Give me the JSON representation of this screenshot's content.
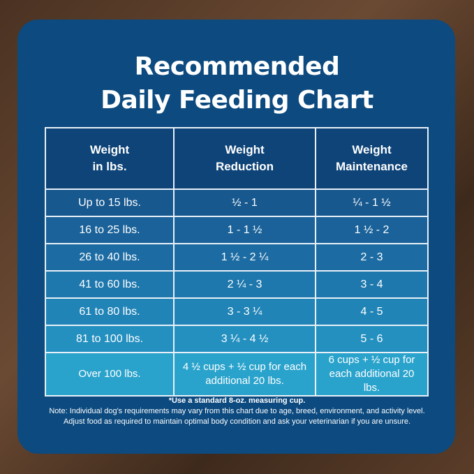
{
  "title_lines": [
    "Recommended",
    "Daily Feeding Chart"
  ],
  "table": {
    "headers": [
      [
        "Weight",
        "in lbs."
      ],
      [
        "Weight",
        "Reduction"
      ],
      [
        "Weight",
        "Maintenance"
      ]
    ],
    "rows": [
      [
        "Up to 15 lbs.",
        "½ - 1",
        "¼ - 1 ½"
      ],
      [
        "16 to 25 lbs.",
        "1 - 1 ½",
        "1 ½ - 2"
      ],
      [
        "26 to 40 lbs.",
        "1 ½ - 2 ¼",
        "2 - 3"
      ],
      [
        "41 to 60 lbs.",
        "2 ¼ - 3",
        "3 - 4"
      ],
      [
        "61 to 80 lbs.",
        "3 - 3 ¼",
        "4 - 5"
      ],
      [
        "81 to 100 lbs.",
        "3 ¼ - 4 ½",
        "5 - 6"
      ],
      [
        "Over 100 lbs.",
        "4 ½ cups  + ½ cup for each additional 20 lbs.",
        "6 cups  + ½ cup for each additional 20 lbs."
      ]
    ],
    "row_colors": [
      "#17588f",
      "#1a6299",
      "#1c6ca3",
      "#1f78ad",
      "#2184b7",
      "#2490c0",
      "#2aa3cc"
    ]
  },
  "footnote": "*Use a standard 8-oz. measuring cup.",
  "note_lines": [
    "Note: Individual dog's requirements may vary from this chart due to age, breed, environment, and activity level.",
    "Adjust food as required to maintain optimal body condition and ask your veterinarian if you are unsure."
  ],
  "colors": {
    "card": "#0c4a7f",
    "border": "#e8f0f7"
  }
}
